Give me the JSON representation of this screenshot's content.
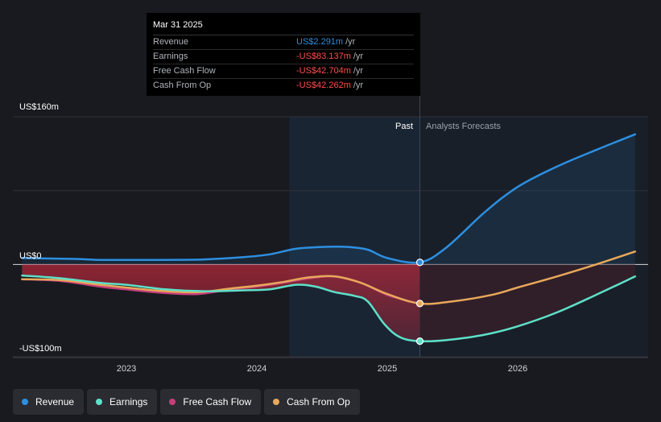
{
  "chart_data": {
    "type": "line",
    "x_ticks": [
      "2023",
      "2024",
      "2025",
      "2026"
    ],
    "y_labels": {
      "top": "US$160m",
      "zero": "US$0",
      "bottom": "-US$100m"
    },
    "ylim": [
      -100,
      160
    ],
    "period_labels": {
      "past": "Past",
      "forecast": "Analysts Forecasts"
    },
    "past_end": 2025.25,
    "series": [
      {
        "name": "Revenue",
        "color": "#2d8fe0",
        "points": [
          [
            2022.2,
            7
          ],
          [
            2022.6,
            6
          ],
          [
            2022.8,
            5
          ],
          [
            2023.0,
            5
          ],
          [
            2023.3,
            5
          ],
          [
            2023.6,
            5.5
          ],
          [
            2023.9,
            8
          ],
          [
            2024.1,
            11
          ],
          [
            2024.3,
            17
          ],
          [
            2024.5,
            19
          ],
          [
            2024.7,
            19
          ],
          [
            2024.85,
            16
          ],
          [
            2025.0,
            7
          ],
          [
            2025.25,
            2.3
          ],
          [
            2025.45,
            18
          ],
          [
            2025.75,
            57
          ],
          [
            2026.0,
            84
          ],
          [
            2026.3,
            106
          ],
          [
            2026.6,
            124
          ],
          [
            2026.9,
            141
          ]
        ]
      },
      {
        "name": "Earnings",
        "color": "#5ee0c8",
        "points": [
          [
            2022.2,
            -12
          ],
          [
            2022.5,
            -15
          ],
          [
            2022.8,
            -20
          ],
          [
            2023.0,
            -22
          ],
          [
            2023.3,
            -27
          ],
          [
            2023.6,
            -29
          ],
          [
            2023.9,
            -28
          ],
          [
            2024.1,
            -27
          ],
          [
            2024.3,
            -22
          ],
          [
            2024.45,
            -24
          ],
          [
            2024.6,
            -30
          ],
          [
            2024.75,
            -34
          ],
          [
            2024.85,
            -40
          ],
          [
            2024.98,
            -65
          ],
          [
            2025.1,
            -79
          ],
          [
            2025.25,
            -83.1
          ],
          [
            2025.45,
            -82
          ],
          [
            2025.75,
            -76
          ],
          [
            2026.0,
            -67
          ],
          [
            2026.3,
            -52
          ],
          [
            2026.6,
            -33
          ],
          [
            2026.9,
            -13
          ]
        ]
      },
      {
        "name": "Free Cash Flow",
        "color": "#c43f7a",
        "points": [
          [
            2022.2,
            -16
          ],
          [
            2022.5,
            -18
          ],
          [
            2022.8,
            -24
          ],
          [
            2023.0,
            -27
          ],
          [
            2023.3,
            -31
          ],
          [
            2023.55,
            -32
          ],
          [
            2023.8,
            -27
          ],
          [
            2024.0,
            -24
          ],
          [
            2024.2,
            -20
          ],
          [
            2024.4,
            -15
          ],
          [
            2024.6,
            -13
          ],
          [
            2024.8,
            -20
          ],
          [
            2025.0,
            -33
          ],
          [
            2025.25,
            -42.7
          ]
        ]
      },
      {
        "name": "Cash From Op",
        "color": "#e8a85a",
        "points": [
          [
            2022.2,
            -16
          ],
          [
            2022.5,
            -17
          ],
          [
            2022.8,
            -22
          ],
          [
            2023.0,
            -25
          ],
          [
            2023.3,
            -29
          ],
          [
            2023.55,
            -30
          ],
          [
            2023.8,
            -26
          ],
          [
            2024.0,
            -23
          ],
          [
            2024.2,
            -19
          ],
          [
            2024.4,
            -14
          ],
          [
            2024.6,
            -13
          ],
          [
            2024.8,
            -20
          ],
          [
            2025.0,
            -32
          ],
          [
            2025.25,
            -42.3
          ],
          [
            2025.5,
            -40
          ],
          [
            2025.8,
            -33
          ],
          [
            2026.0,
            -25
          ],
          [
            2026.3,
            -13
          ],
          [
            2026.6,
            0
          ],
          [
            2026.9,
            14
          ]
        ]
      }
    ]
  },
  "tooltip": {
    "date": "Mar 31 2025",
    "rows": [
      {
        "name": "Revenue",
        "value": "US$2.291m",
        "unit": "/yr",
        "color": "#2d8fe0"
      },
      {
        "name": "Earnings",
        "value": "-US$83.137m",
        "unit": "/yr",
        "color": "#ff4d4d"
      },
      {
        "name": "Free Cash Flow",
        "value": "-US$42.704m",
        "unit": "/yr",
        "color": "#ff4d4d"
      },
      {
        "name": "Cash From Op",
        "value": "-US$42.262m",
        "unit": "/yr",
        "color": "#ff4d4d"
      }
    ]
  },
  "legend": [
    {
      "label": "Revenue",
      "color": "#2d8fe0"
    },
    {
      "label": "Earnings",
      "color": "#5ee0c8"
    },
    {
      "label": "Free Cash Flow",
      "color": "#c43f7a"
    },
    {
      "label": "Cash From Op",
      "color": "#e8a85a"
    }
  ]
}
